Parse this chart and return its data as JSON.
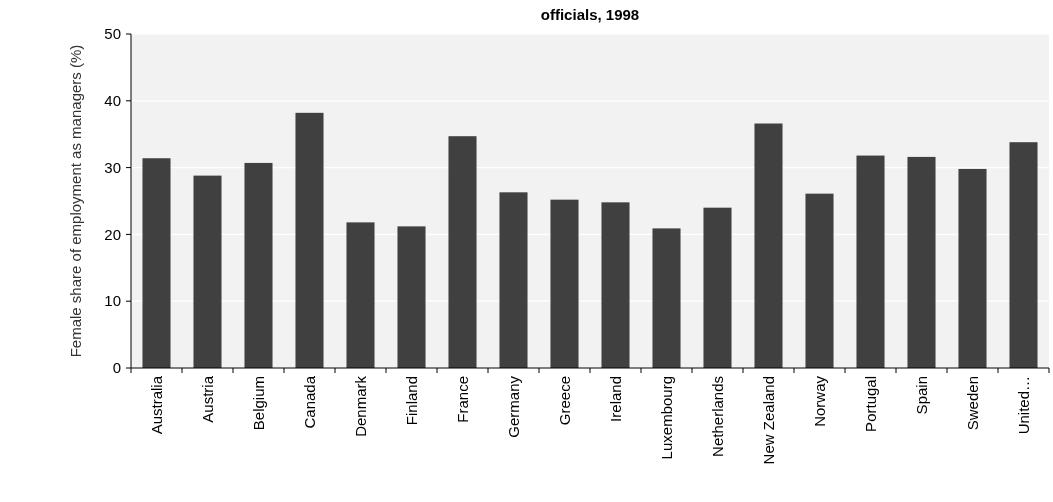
{
  "chart_data": {
    "type": "bar",
    "title": "officials, 1998",
    "ylabel": "Female share of employment as managers (%)",
    "categories": [
      "Australia",
      "Austria",
      "Belgium",
      "Canada",
      "Denmark",
      "Finland",
      "France",
      "Germany",
      "Greece",
      "Ireland",
      "Luxembourg",
      "Netherlands",
      "New Zealand",
      "Norway",
      "Portugal",
      "Spain",
      "Sweden",
      "United…"
    ],
    "values": [
      31.4,
      28.8,
      30.7,
      38.2,
      21.8,
      21.2,
      34.7,
      26.3,
      25.2,
      24.8,
      20.9,
      24.0,
      36.6,
      26.1,
      31.8,
      31.6,
      29.8,
      33.8
    ],
    "color": "#404040",
    "ylim": [
      0,
      50
    ],
    "yticks": [
      0,
      10,
      20,
      30,
      40,
      50
    ],
    "grid": "y"
  }
}
